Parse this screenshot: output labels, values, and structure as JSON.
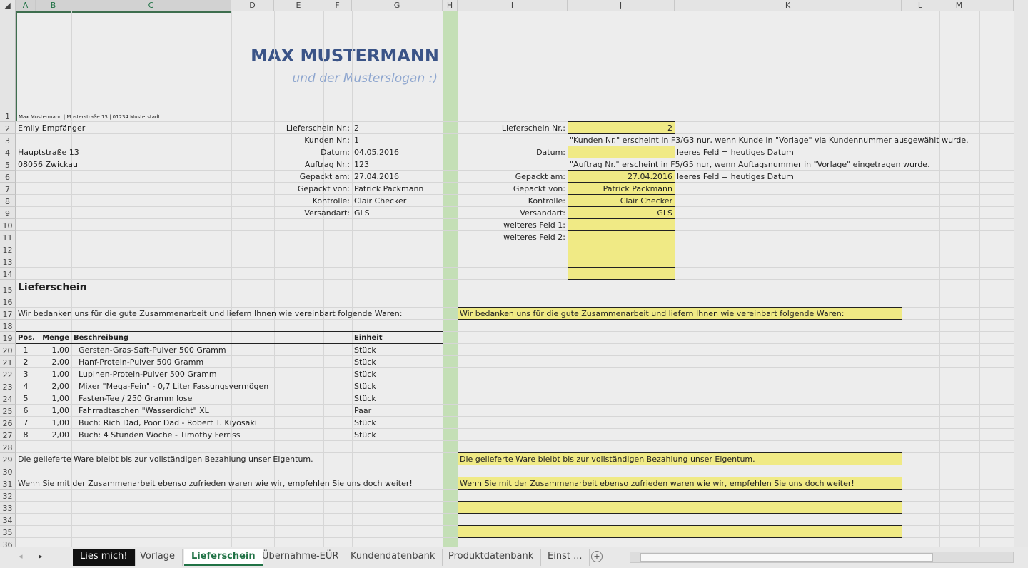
{
  "columns": [
    "A",
    "B",
    "C",
    "D",
    "E",
    "F",
    "G",
    "H",
    "I",
    "J",
    "K",
    "L",
    "M"
  ],
  "header": {
    "company": "MAX MUSTERMANN",
    "slogan": "und der Musterslogan :)",
    "sender_line": "Max Mustermann | Musterstraße 13 | 01234 Musterstadt"
  },
  "cells": [
    {
      "row": 2,
      "col": "A",
      "text": "Emily Empfänger"
    },
    {
      "row": 4,
      "col": "A",
      "text": "Hauptstraße 13"
    },
    {
      "row": 5,
      "col": "A",
      "text": "08056 Zwickau"
    },
    {
      "row": 2,
      "col": "E",
      "text": "Lieferschein Nr.:",
      "align": "right"
    },
    {
      "row": 3,
      "col": "E",
      "text": "Kunden Nr.:",
      "align": "right"
    },
    {
      "row": 4,
      "col": "E",
      "text": "Datum:",
      "align": "right"
    },
    {
      "row": 5,
      "col": "E",
      "text": "Auftrag Nr.:",
      "align": "right"
    },
    {
      "row": 6,
      "col": "E",
      "text": "Gepackt am:",
      "align": "right"
    },
    {
      "row": 7,
      "col": "E",
      "text": "Gepackt von:",
      "align": "right"
    },
    {
      "row": 8,
      "col": "E",
      "text": "Kontrolle:",
      "align": "right"
    },
    {
      "row": 9,
      "col": "E",
      "text": "Versandart:",
      "align": "right"
    },
    {
      "row": 2,
      "col": "G",
      "text": "2"
    },
    {
      "row": 3,
      "col": "G",
      "text": "1"
    },
    {
      "row": 4,
      "col": "G",
      "text": "04.05.2016"
    },
    {
      "row": 5,
      "col": "G",
      "text": "123"
    },
    {
      "row": 6,
      "col": "G",
      "text": "27.04.2016"
    },
    {
      "row": 7,
      "col": "G",
      "text": "Patrick Packmann"
    },
    {
      "row": 8,
      "col": "G",
      "text": "Clair Checker"
    },
    {
      "row": 9,
      "col": "G",
      "text": "GLS"
    },
    {
      "row": 15,
      "col": "A",
      "text": "Lieferschein",
      "bold": true,
      "size": "big"
    },
    {
      "row": 17,
      "col": "A",
      "text": "Wir bedanken uns für die gute Zusammenarbeit und liefern Ihnen wie vereinbart folgende Waren:"
    },
    {
      "row": 29,
      "col": "A",
      "text": "Die gelieferte Ware bleibt bis zur vollständigen Bezahlung unser Eigentum."
    },
    {
      "row": 31,
      "col": "A",
      "text": "Wenn Sie mit der Zusammenarbeit ebenso zufrieden waren wie wir, empfehlen Sie uns doch weiter!"
    },
    {
      "row": 2,
      "col": "I",
      "text": "Lieferschein Nr.:",
      "align": "right"
    },
    {
      "row": 4,
      "col": "I",
      "text": "Datum:",
      "align": "right"
    },
    {
      "row": 6,
      "col": "I",
      "text": "Gepackt am:",
      "align": "right"
    },
    {
      "row": 7,
      "col": "I",
      "text": "Gepackt von:",
      "align": "right"
    },
    {
      "row": 8,
      "col": "I",
      "text": "Kontrolle:",
      "align": "right"
    },
    {
      "row": 9,
      "col": "I",
      "text": "Versandart:",
      "align": "right"
    },
    {
      "row": 10,
      "col": "I",
      "text": "weiteres Feld 1:",
      "align": "right"
    },
    {
      "row": 11,
      "col": "I",
      "text": "weiteres Feld 2:",
      "align": "right"
    },
    {
      "row": 2,
      "col": "J",
      "text": "2",
      "align": "right"
    },
    {
      "row": 6,
      "col": "J",
      "text": "27.04.2016",
      "align": "right"
    },
    {
      "row": 7,
      "col": "J",
      "text": "Patrick Packmann",
      "align": "right"
    },
    {
      "row": 8,
      "col": "J",
      "text": "Clair Checker",
      "align": "right"
    },
    {
      "row": 9,
      "col": "J",
      "text": "GLS",
      "align": "right"
    },
    {
      "row": 3,
      "col": "J",
      "text": "\"Kunden Nr.\" erscheint in F3/G3 nur, wenn Kunde in \"Vorlage\" via Kundennummer ausgewählt wurde."
    },
    {
      "row": 4,
      "col": "K",
      "text": "leeres Feld = heutiges Datum"
    },
    {
      "row": 5,
      "col": "J",
      "text": "\"Auftrag Nr.\" erscheint in F5/G5 nur, wenn Auftagsnummer in \"Vorlage\" eingetragen wurde."
    },
    {
      "row": 6,
      "col": "K",
      "text": "leeres Feld = heutiges Datum"
    },
    {
      "row": 17,
      "col": "I",
      "text": "Wir bedanken uns für die gute Zusammenarbeit und liefern Ihnen wie vereinbart folgende Waren:"
    },
    {
      "row": 29,
      "col": "I",
      "text": "Die gelieferte Ware bleibt bis zur vollständigen Bezahlung unser Eigentum."
    },
    {
      "row": 31,
      "col": "I",
      "text": "Wenn Sie mit der Zusammenarbeit ebenso zufrieden waren wie wir, empfehlen Sie uns doch weiter!"
    }
  ],
  "items_table": {
    "headers": [
      "Pos.",
      "Menge",
      "Beschreibung",
      "Einheit"
    ],
    "rows": [
      [
        "1",
        "1,00",
        "Gersten-Gras-Saft-Pulver 500 Gramm",
        "Stück"
      ],
      [
        "2",
        "2,00",
        "Hanf-Protein-Pulver 500 Gramm",
        "Stück"
      ],
      [
        "3",
        "1,00",
        "Lupinen-Protein-Pulver 500 Gramm",
        "Stück"
      ],
      [
        "4",
        "2,00",
        "Mixer \"Mega-Fein\" - 0,7 Liter Fassungsvermögen",
        "Stück"
      ],
      [
        "5",
        "1,00",
        "Fasten-Tee / 250 Gramm lose",
        "Stück"
      ],
      [
        "6",
        "1,00",
        "Fahrradtaschen \"Wasserdicht\" XL",
        "Paar"
      ],
      [
        "7",
        "1,00",
        "Buch: Rich Dad, Poor Dad - Robert T. Kiyosaki",
        "Stück"
      ],
      [
        "8",
        "2,00",
        "Buch: 4 Stunden Woche - Timothy Ferriss",
        "Stück"
      ]
    ]
  },
  "tabs": [
    {
      "label": "Lies mich!",
      "style": "dark"
    },
    {
      "label": "Vorlage"
    },
    {
      "label": "Lieferschein",
      "style": "active"
    },
    {
      "label": "Übernahme-EÜR"
    },
    {
      "label": "Kundendatenbank"
    },
    {
      "label": "Produktdatenbank"
    },
    {
      "label": "Einst ..."
    }
  ],
  "colors": {
    "accent": "#217346",
    "yellow": "#f0ea85",
    "title": "#3b5487",
    "slogan": "#8ea6cf",
    "column_h": "#c4dfb6"
  }
}
